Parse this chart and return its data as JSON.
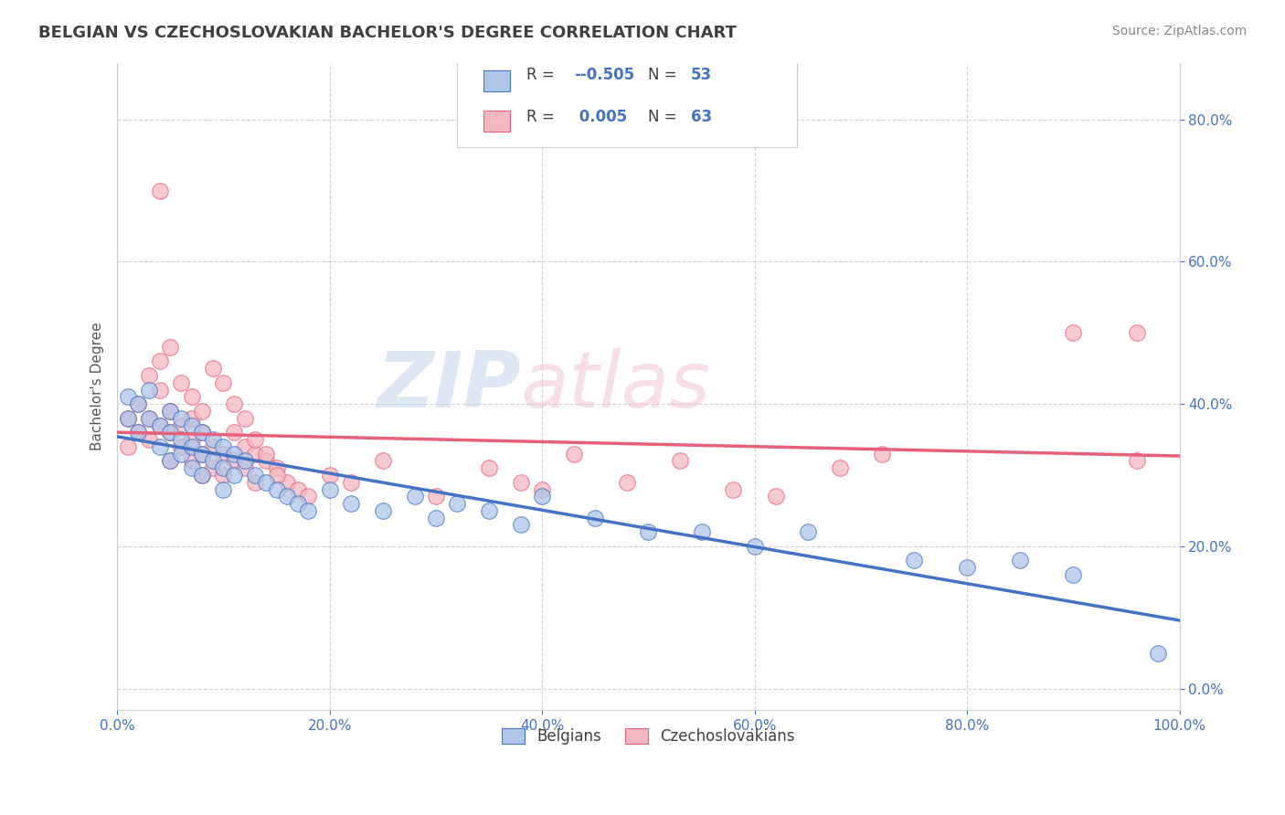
{
  "title": "BELGIAN VS CZECHOSLOVAKIAN BACHELOR'S DEGREE CORRELATION CHART",
  "source": "Source: ZipAtlas.com",
  "ylabel": "Bachelor's Degree",
  "xlim": [
    0.0,
    1.0
  ],
  "ylim": [
    -0.03,
    0.88
  ],
  "yticks": [
    0.0,
    0.2,
    0.4,
    0.6,
    0.8
  ],
  "xticks": [
    0.0,
    0.2,
    0.4,
    0.6,
    0.8,
    1.0
  ],
  "grid_color": "#cccccc",
  "background_color": "#ffffff",
  "belgian_color": "#aec6e8",
  "czechoslovakian_color": "#f4b8c1",
  "belgian_line_color": "#4472c4",
  "czechoslovakian_line_color": "#e8607a",
  "watermark_zip": "ZIP",
  "watermark_atlas": "atlas",
  "belgians_label": "Belgians",
  "czechoslovakians_label": "Czechoslovakians",
  "legend_R_belgian": "-0.505",
  "legend_N_belgian": "53",
  "legend_R_czech": "0.005",
  "legend_N_czech": "63",
  "text_color_blue": "#4472c4",
  "text_color_dark": "#404040",
  "belgian_scatter_x": [
    0.01,
    0.01,
    0.02,
    0.02,
    0.03,
    0.03,
    0.04,
    0.04,
    0.05,
    0.05,
    0.05,
    0.06,
    0.06,
    0.06,
    0.07,
    0.07,
    0.07,
    0.08,
    0.08,
    0.08,
    0.09,
    0.09,
    0.1,
    0.1,
    0.1,
    0.11,
    0.11,
    0.12,
    0.13,
    0.14,
    0.15,
    0.16,
    0.17,
    0.18,
    0.2,
    0.22,
    0.25,
    0.28,
    0.3,
    0.32,
    0.35,
    0.38,
    0.4,
    0.45,
    0.5,
    0.55,
    0.6,
    0.65,
    0.75,
    0.8,
    0.85,
    0.9,
    0.98
  ],
  "belgian_scatter_y": [
    0.41,
    0.38,
    0.4,
    0.36,
    0.42,
    0.38,
    0.37,
    0.34,
    0.39,
    0.36,
    0.32,
    0.38,
    0.35,
    0.33,
    0.37,
    0.34,
    0.31,
    0.36,
    0.33,
    0.3,
    0.35,
    0.32,
    0.34,
    0.31,
    0.28,
    0.33,
    0.3,
    0.32,
    0.3,
    0.29,
    0.28,
    0.27,
    0.26,
    0.25,
    0.28,
    0.26,
    0.25,
    0.27,
    0.24,
    0.26,
    0.25,
    0.23,
    0.27,
    0.24,
    0.22,
    0.22,
    0.2,
    0.22,
    0.18,
    0.17,
    0.18,
    0.16,
    0.05
  ],
  "czech_scatter_x": [
    0.01,
    0.01,
    0.02,
    0.02,
    0.03,
    0.03,
    0.04,
    0.04,
    0.05,
    0.05,
    0.05,
    0.06,
    0.06,
    0.07,
    0.07,
    0.07,
    0.08,
    0.08,
    0.08,
    0.09,
    0.09,
    0.1,
    0.1,
    0.11,
    0.11,
    0.12,
    0.12,
    0.13,
    0.13,
    0.14,
    0.15,
    0.16,
    0.17,
    0.18,
    0.2,
    0.22,
    0.25,
    0.3,
    0.35,
    0.38,
    0.4,
    0.43,
    0.48,
    0.53,
    0.58,
    0.62,
    0.68,
    0.72,
    0.9,
    0.96,
    0.03,
    0.04,
    0.05,
    0.06,
    0.07,
    0.08,
    0.09,
    0.1,
    0.11,
    0.12,
    0.13,
    0.14,
    0.15
  ],
  "czech_scatter_y": [
    0.38,
    0.34,
    0.4,
    0.36,
    0.38,
    0.35,
    0.42,
    0.37,
    0.39,
    0.36,
    0.32,
    0.37,
    0.34,
    0.38,
    0.35,
    0.32,
    0.36,
    0.33,
    0.3,
    0.34,
    0.31,
    0.33,
    0.3,
    0.36,
    0.32,
    0.34,
    0.31,
    0.33,
    0.29,
    0.32,
    0.31,
    0.29,
    0.28,
    0.27,
    0.3,
    0.29,
    0.32,
    0.27,
    0.31,
    0.29,
    0.28,
    0.33,
    0.29,
    0.32,
    0.28,
    0.27,
    0.31,
    0.33,
    0.5,
    0.32,
    0.44,
    0.46,
    0.48,
    0.43,
    0.41,
    0.39,
    0.45,
    0.43,
    0.4,
    0.38,
    0.35,
    0.33,
    0.3
  ],
  "czech_outlier_x": [
    0.04
  ],
  "czech_outlier_y": [
    0.7
  ],
  "czech_farright_x": [
    0.96
  ],
  "czech_farright_y": [
    0.5
  ]
}
